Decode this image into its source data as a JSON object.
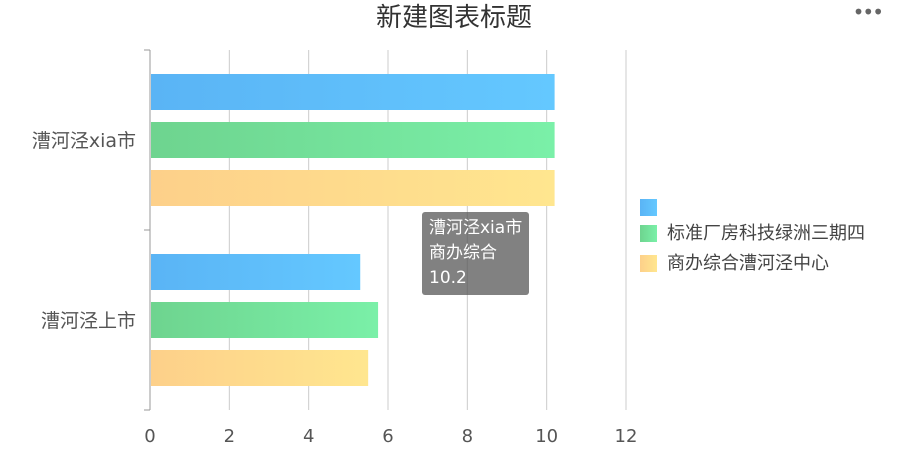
{
  "title": "新建图表标题",
  "menu_icon": "ellipsis-icon",
  "chart_data": {
    "type": "bar",
    "orientation": "horizontal",
    "title": "新建图表标题",
    "categories": [
      "漕河泾xia市",
      "漕河泾上市"
    ],
    "series": [
      {
        "name": "",
        "values": [
          10.2,
          5.3
        ],
        "color": "#5AB4F5",
        "color_end": "#64C8FF"
      },
      {
        "name": "标准厂房科技绿洲三期四",
        "values": [
          10.2,
          5.75
        ],
        "color": "#6ED48F",
        "color_end": "#7AF0A8"
      },
      {
        "name": "商办综合漕河泾中心",
        "values": [
          10.2,
          5.5
        ],
        "color": "#FDD08A",
        "color_end": "#FFE68F"
      }
    ],
    "xlim": [
      0,
      12
    ],
    "xticks": [
      0,
      2,
      4,
      6,
      8,
      10,
      12
    ],
    "grid": true,
    "legend_position": "right"
  },
  "tooltip": {
    "line1": "漕河泾xia市",
    "line2": "商办综合",
    "line3": "10.2"
  }
}
